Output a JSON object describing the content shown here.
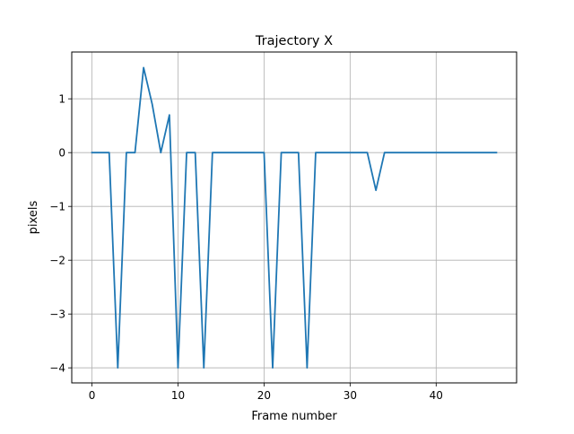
{
  "chart_data": {
    "type": "line",
    "title": "Trajectory X",
    "xlabel": "Frame number",
    "ylabel": "pixels",
    "xlim": [
      -2.35,
      49.35
    ],
    "ylim": [
      -4.28,
      1.87
    ],
    "grid": true,
    "legend": "none",
    "x_ticks": [
      0,
      10,
      20,
      30,
      40
    ],
    "x_tick_labels": [
      "0",
      "10",
      "20",
      "30",
      "40"
    ],
    "y_ticks": [
      1,
      0,
      -1,
      -2,
      -3,
      -4
    ],
    "y_tick_labels": [
      "1",
      "0",
      "−1",
      "−2",
      "−3",
      "−4"
    ],
    "series": [
      {
        "color": "#1f77b4",
        "x": [
          0,
          1,
          2,
          3,
          4,
          5,
          6,
          7,
          8,
          9,
          10,
          11,
          12,
          13,
          14,
          15,
          16,
          17,
          18,
          19,
          20,
          21,
          22,
          23,
          24,
          25,
          26,
          27,
          28,
          29,
          30,
          31,
          32,
          33,
          34,
          35,
          36,
          37,
          38,
          39,
          40,
          41,
          42,
          43,
          44,
          45,
          46,
          47
        ],
        "values": [
          0,
          0,
          0,
          -4,
          0,
          0,
          1.58,
          0.9,
          0,
          0.7,
          -4,
          0,
          0,
          -4,
          0,
          0,
          0,
          0,
          0,
          0,
          0,
          -4,
          0,
          0,
          0,
          -4,
          0,
          0,
          0,
          0,
          0,
          0,
          0,
          -0.7,
          0,
          0,
          0,
          0,
          0,
          0,
          0,
          0,
          0,
          0,
          0,
          0,
          0,
          0
        ]
      }
    ]
  }
}
